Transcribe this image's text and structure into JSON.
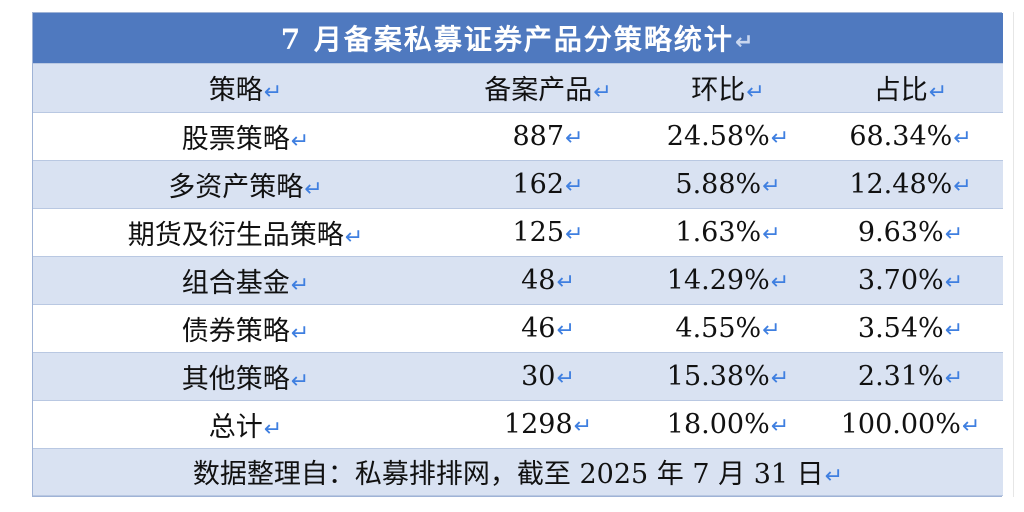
{
  "title": "7 月备案私募证券产品分策略统计",
  "columns": [
    "策略",
    "备案产品",
    "环比",
    "占比"
  ],
  "rows": [
    [
      "股票策略",
      "887",
      "24.58%",
      "68.34%"
    ],
    [
      "多资产策略",
      "162",
      "5.88%",
      "12.48%"
    ],
    [
      "期货及衍生品策略",
      "125",
      "1.63%",
      "9.63%"
    ],
    [
      "组合基金",
      "48",
      "14.29%",
      "3.70%"
    ],
    [
      "债券策略",
      "46",
      "4.55%",
      "3.54%"
    ],
    [
      "其他策略",
      "30",
      "15.38%",
      "2.31%"
    ],
    [
      "总计",
      "1298",
      "18.00%",
      "100.00%"
    ]
  ],
  "footer": "数据整理自：私募排排网，截至 2025 年 7 月 31 日",
  "paragraph_mark": "↵",
  "colors": {
    "title_bg": "#4f79bf",
    "stripe_bg": "#d9e2f2",
    "mark": "#3f7fe0"
  }
}
